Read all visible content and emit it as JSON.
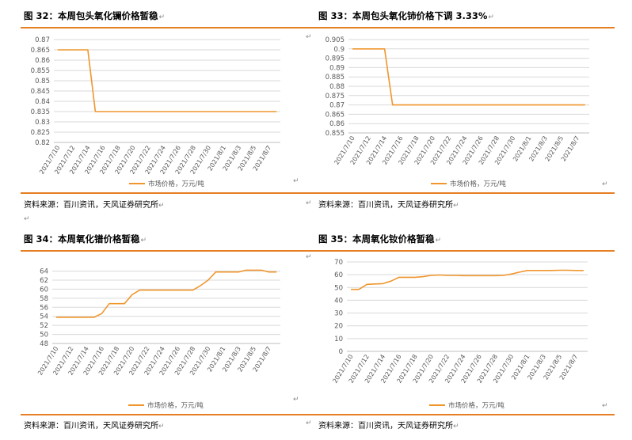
{
  "panels": [
    {
      "title": "图 32：本周包头氧化镧价格暂稳",
      "source": "资料来源：百川资讯，天风证券研究所",
      "chart_data": {
        "type": "line",
        "x": [
          "2021/7/10",
          "2021/7/11",
          "2021/7/12",
          "2021/7/13",
          "2021/7/14",
          "2021/7/15",
          "2021/7/16",
          "2021/7/17",
          "2021/7/18",
          "2021/7/19",
          "2021/7/20",
          "2021/7/21",
          "2021/7/22",
          "2021/7/23",
          "2021/7/24",
          "2021/7/25",
          "2021/7/26",
          "2021/7/27",
          "2021/7/28",
          "2021/7/29",
          "2021/7/30",
          "2021/7/31",
          "2021/8/1",
          "2021/8/2",
          "2021/8/3",
          "2021/8/4",
          "2021/8/5",
          "2021/8/6",
          "2021/8/7",
          "2021/8/8"
        ],
        "x_tick_labels": [
          "2021/7/10",
          "2021/7/12",
          "2021/7/14",
          "2021/7/16",
          "2021/7/18",
          "2021/7/20",
          "2021/7/22",
          "2021/7/24",
          "2021/7/26",
          "2021/7/28",
          "2021/7/30",
          "2021/8/1",
          "2021/8/3",
          "2021/8/5",
          "2021/8/7"
        ],
        "y_ticks": [
          "0.87",
          "0.865",
          "0.86",
          "0.855",
          "0.85",
          "0.845",
          "0.84",
          "0.835",
          "0.83",
          "0.825",
          "0.82"
        ],
        "ylim": [
          0.82,
          0.87
        ],
        "series": [
          {
            "name": "市场价格，万元/吨",
            "values": [
              0.865,
              0.865,
              0.865,
              0.865,
              0.865,
              0.835,
              0.835,
              0.835,
              0.835,
              0.835,
              0.835,
              0.835,
              0.835,
              0.835,
              0.835,
              0.835,
              0.835,
              0.835,
              0.835,
              0.835,
              0.835,
              0.835,
              0.835,
              0.835,
              0.835,
              0.835,
              0.835,
              0.835,
              0.835,
              0.835
            ]
          }
        ],
        "color": "#f0962d",
        "grid": true,
        "legend": "bottom"
      }
    },
    {
      "title": "图 33：本周包头氧化铈价格下调 3.33%",
      "source": "资料来源：百川资讯，天风证券研究所",
      "chart_data": {
        "type": "line",
        "x": [
          "2021/7/10",
          "2021/7/11",
          "2021/7/12",
          "2021/7/13",
          "2021/7/14",
          "2021/7/15",
          "2021/7/16",
          "2021/7/17",
          "2021/7/18",
          "2021/7/19",
          "2021/7/20",
          "2021/7/21",
          "2021/7/22",
          "2021/7/23",
          "2021/7/24",
          "2021/7/25",
          "2021/7/26",
          "2021/7/27",
          "2021/7/28",
          "2021/7/29",
          "2021/7/30",
          "2021/7/31",
          "2021/8/1",
          "2021/8/2",
          "2021/8/3",
          "2021/8/4",
          "2021/8/5",
          "2021/8/6",
          "2021/8/7",
          "2021/8/8"
        ],
        "x_tick_labels": [
          "2021/7/10",
          "2021/7/12",
          "2021/7/14",
          "2021/7/16",
          "2021/7/18",
          "2021/7/20",
          "2021/7/22",
          "2021/7/24",
          "2021/7/26",
          "2021/7/28",
          "2021/7/30",
          "2021/8/1",
          "2021/8/3",
          "2021/8/5",
          "2021/8/7"
        ],
        "y_ticks": [
          "0.905",
          "0.9",
          "0.895",
          "0.89",
          "0.885",
          "0.88",
          "0.875",
          "0.87",
          "0.865",
          "0.86",
          "0.855"
        ],
        "ylim": [
          0.855,
          0.905
        ],
        "series": [
          {
            "name": "市场价格，万元/吨",
            "values": [
              0.9,
              0.9,
              0.9,
              0.9,
              0.9,
              0.87,
              0.87,
              0.87,
              0.87,
              0.87,
              0.87,
              0.87,
              0.87,
              0.87,
              0.87,
              0.87,
              0.87,
              0.87,
              0.87,
              0.87,
              0.87,
              0.87,
              0.87,
              0.87,
              0.87,
              0.87,
              0.87,
              0.87,
              0.87,
              0.87
            ]
          }
        ],
        "color": "#f0962d",
        "grid": true,
        "legend": "bottom"
      }
    },
    {
      "title": "图 34：本周氧化镨价格暂稳",
      "source": "资料来源：百川资讯，天风证券研究所",
      "chart_data": {
        "type": "line",
        "x": [
          "2021/7/10",
          "2021/7/11",
          "2021/7/12",
          "2021/7/13",
          "2021/7/14",
          "2021/7/15",
          "2021/7/16",
          "2021/7/17",
          "2021/7/18",
          "2021/7/19",
          "2021/7/20",
          "2021/7/21",
          "2021/7/22",
          "2021/7/23",
          "2021/7/24",
          "2021/7/25",
          "2021/7/26",
          "2021/7/27",
          "2021/7/28",
          "2021/7/29",
          "2021/7/30",
          "2021/7/31",
          "2021/8/1",
          "2021/8/2",
          "2021/8/3",
          "2021/8/4",
          "2021/8/5",
          "2021/8/6",
          "2021/8/7",
          "2021/8/8"
        ],
        "x_tick_labels": [
          "2021/7/10",
          "2021/7/12",
          "2021/7/14",
          "2021/7/16",
          "2021/7/18",
          "2021/7/20",
          "2021/7/22",
          "2021/7/24",
          "2021/7/26",
          "2021/7/28",
          "2021/7/30",
          "2021/8/1",
          "2021/8/3",
          "2021/8/5",
          "2021/8/7"
        ],
        "y_ticks": [
          "64",
          "62",
          "60",
          "58",
          "56",
          "54",
          "52",
          "50",
          "48"
        ],
        "ylim": [
          48,
          65.5
        ],
        "series": [
          {
            "name": "市场价格，万元/吨",
            "values": [
              53.8,
              53.8,
              53.8,
              53.8,
              53.8,
              53.8,
              54.6,
              56.8,
              56.8,
              56.8,
              58.8,
              59.8,
              59.8,
              59.8,
              59.8,
              59.8,
              59.8,
              59.8,
              59.8,
              60.8,
              62,
              63.8,
              63.8,
              63.8,
              63.8,
              64.2,
              64.2,
              64.2,
              63.8,
              63.8
            ]
          }
        ],
        "color": "#f0962d",
        "grid": true,
        "legend": "bottom"
      }
    },
    {
      "title": "图 35：本周氧化钕价格暂稳",
      "source": "资料来源：百川资讯，天风证券研究所",
      "chart_data": {
        "type": "line",
        "x": [
          "2021/7/10",
          "2021/7/11",
          "2021/7/12",
          "2021/7/13",
          "2021/7/14",
          "2021/7/15",
          "2021/7/16",
          "2021/7/17",
          "2021/7/18",
          "2021/7/19",
          "2021/7/20",
          "2021/7/21",
          "2021/7/22",
          "2021/7/23",
          "2021/7/24",
          "2021/7/25",
          "2021/7/26",
          "2021/7/27",
          "2021/7/28",
          "2021/7/29",
          "2021/7/30",
          "2021/7/31",
          "2021/8/1",
          "2021/8/2",
          "2021/8/3",
          "2021/8/4",
          "2021/8/5",
          "2021/8/6",
          "2021/8/7",
          "2021/8/8"
        ],
        "x_tick_labels": [
          "2021/7/10",
          "2021/7/12",
          "2021/7/14",
          "2021/7/16",
          "2021/7/18",
          "2021/7/20",
          "2021/7/22",
          "2021/7/24",
          "2021/7/26",
          "2021/7/28",
          "2021/7/30",
          "2021/8/1",
          "2021/8/3",
          "2021/8/5",
          "2021/8/7"
        ],
        "y_ticks": [
          "70",
          "60",
          "50",
          "40",
          "30",
          "20",
          "10",
          "0"
        ],
        "ylim": [
          0,
          70
        ],
        "series": [
          {
            "name": "市场价格，万元/吨",
            "values": [
              48.5,
              48.5,
              52.5,
              52.8,
              53,
              55,
              58,
              58,
              58,
              58.5,
              59.5,
              59.8,
              59.5,
              59.5,
              59.3,
              59.3,
              59.3,
              59.3,
              59.3,
              59.5,
              60.5,
              62,
              63.3,
              63.3,
              63.3,
              63.3,
              63.5,
              63.5,
              63.3,
              63.3
            ]
          }
        ],
        "color": "#f0962d",
        "grid": true,
        "legend": "bottom"
      }
    }
  ]
}
